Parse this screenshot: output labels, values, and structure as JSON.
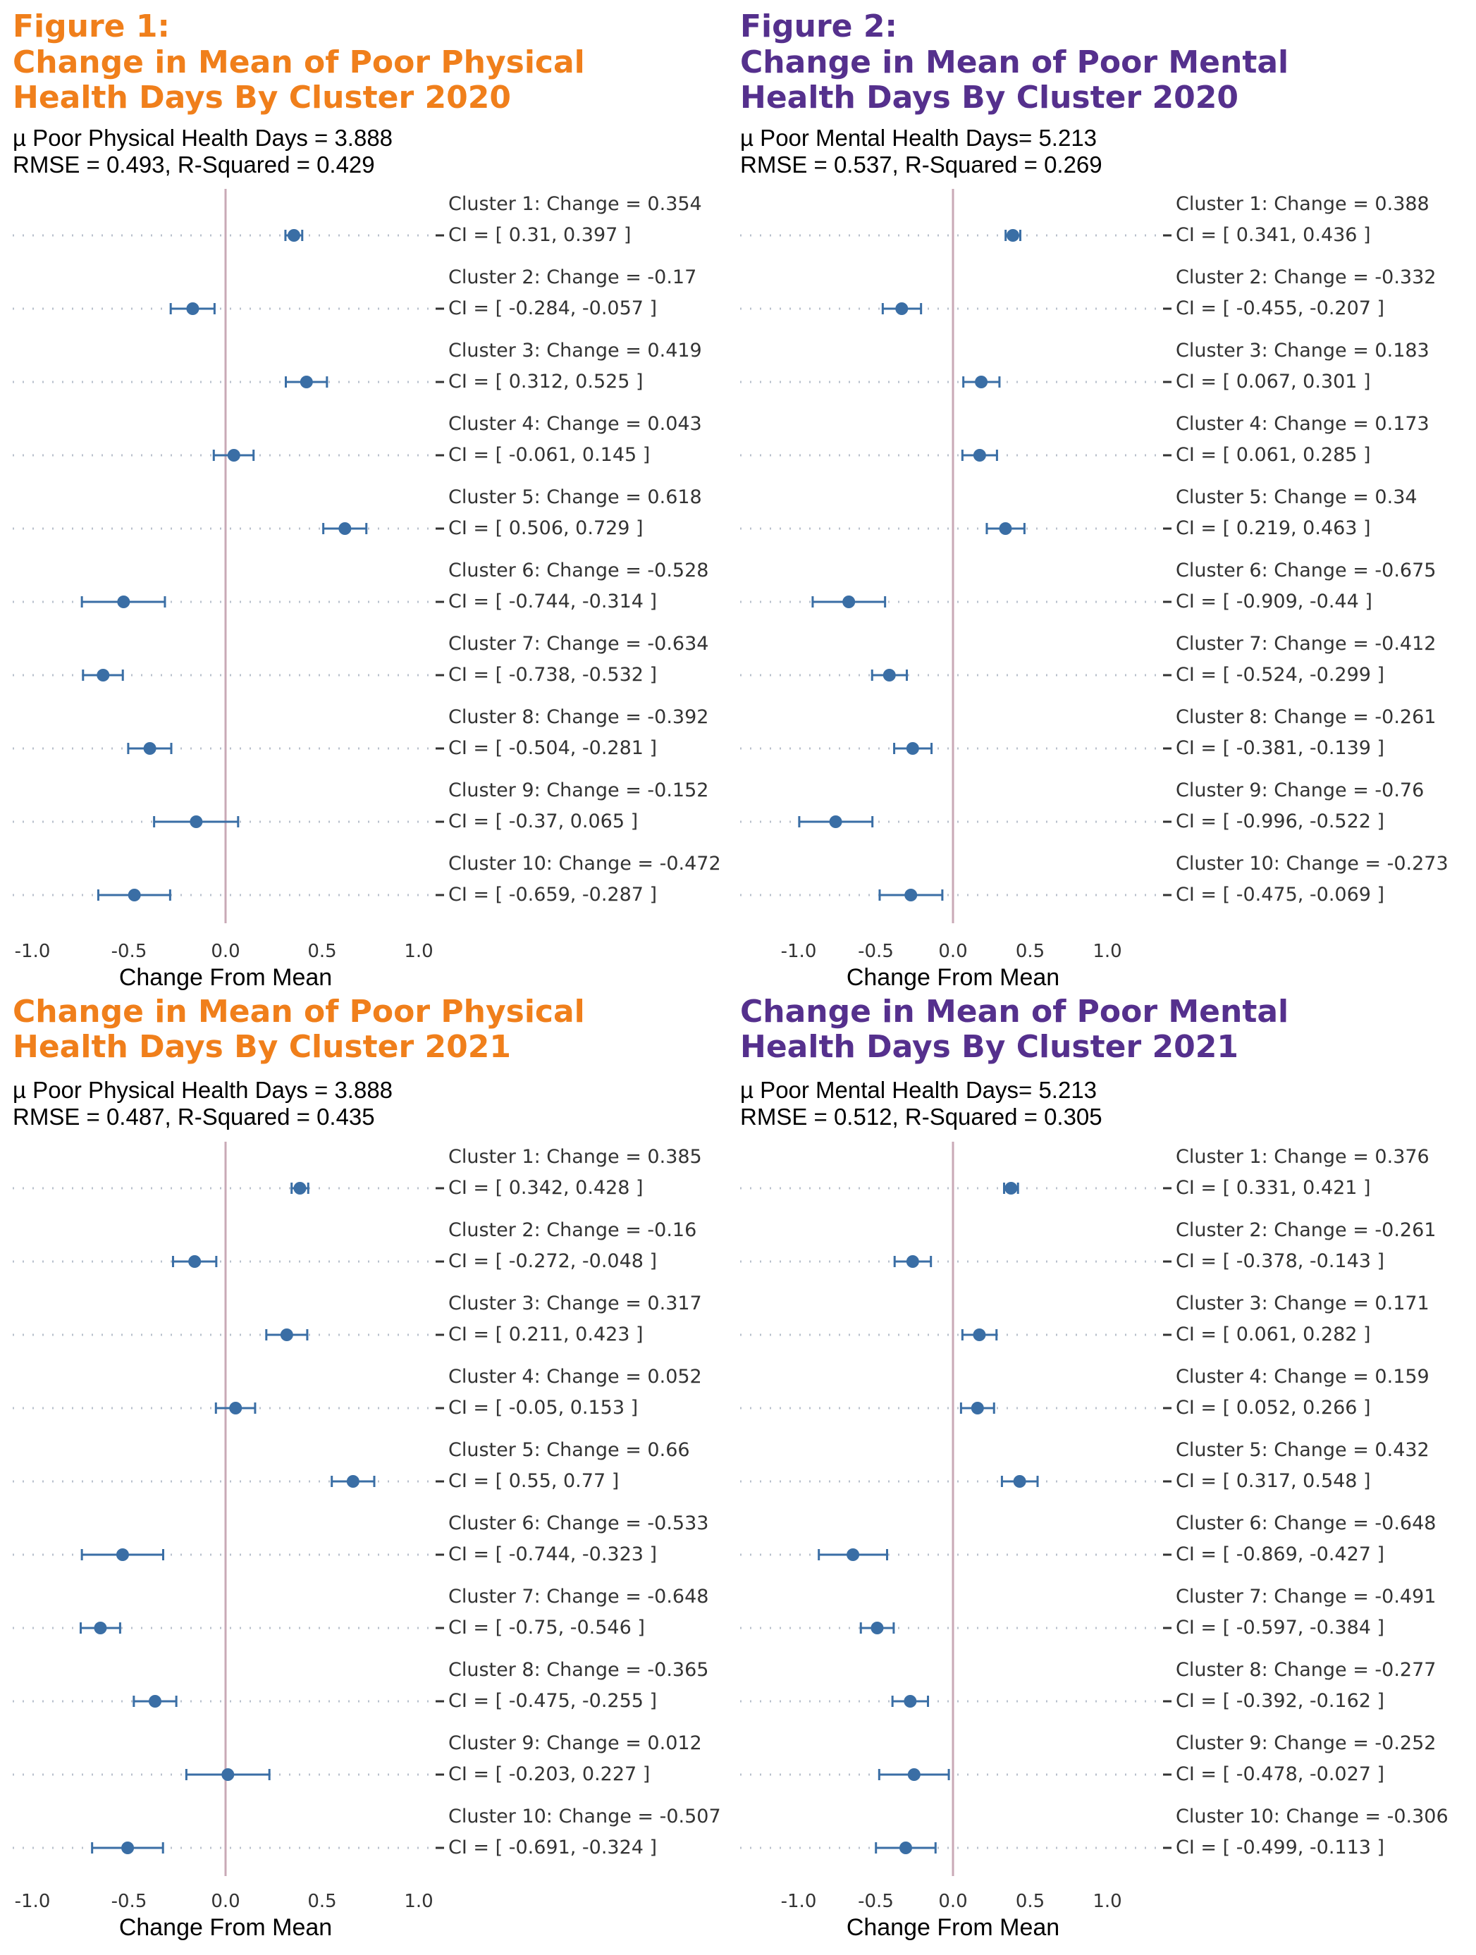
{
  "chart_data": [
    {
      "type": "forest",
      "title": [
        "Figure 1:",
        "Change in Mean of Poor Physical",
        "Health Days By Cluster 2020"
      ],
      "title_color": "#F07F1B",
      "stats": [
        "µ Poor Physical Health Days = 3.888",
        "RMSE = 0.493, R-Squared = 0.429"
      ],
      "xlabel": "Change From Mean",
      "xlim": [
        -1.1,
        1.25
      ],
      "xticks": [
        "-1.0",
        "-0.5",
        "0.0",
        "0.5",
        "1.0"
      ],
      "point_color": "#3A6EA5",
      "clusters": [
        {
          "label": "Cluster 1: Change = 0.354",
          "ci_label": "CI = [ 0.31, 0.397 ]",
          "value": 0.354,
          "lo": 0.31,
          "hi": 0.397
        },
        {
          "label": "Cluster 2: Change = -0.17",
          "ci_label": "CI = [ -0.284, -0.057 ]",
          "value": -0.17,
          "lo": -0.284,
          "hi": -0.057
        },
        {
          "label": "Cluster 3: Change = 0.419",
          "ci_label": "CI = [ 0.312, 0.525 ]",
          "value": 0.419,
          "lo": 0.312,
          "hi": 0.525
        },
        {
          "label": "Cluster 4: Change = 0.043",
          "ci_label": "CI = [ -0.061, 0.145 ]",
          "value": 0.043,
          "lo": -0.061,
          "hi": 0.145
        },
        {
          "label": "Cluster 5: Change = 0.618",
          "ci_label": "CI = [ 0.506, 0.729 ]",
          "value": 0.618,
          "lo": 0.506,
          "hi": 0.729
        },
        {
          "label": "Cluster 6: Change = -0.528",
          "ci_label": "CI = [ -0.744, -0.314 ]",
          "value": -0.528,
          "lo": -0.744,
          "hi": -0.314
        },
        {
          "label": "Cluster 7: Change = -0.634",
          "ci_label": "CI = [ -0.738, -0.532 ]",
          "value": -0.634,
          "lo": -0.738,
          "hi": -0.532
        },
        {
          "label": "Cluster 8: Change = -0.392",
          "ci_label": "CI = [ -0.504, -0.281 ]",
          "value": -0.392,
          "lo": -0.504,
          "hi": -0.281
        },
        {
          "label": "Cluster 9: Change = -0.152",
          "ci_label": "CI = [ -0.37, 0.065 ]",
          "value": -0.152,
          "lo": -0.37,
          "hi": 0.065
        },
        {
          "label": "Cluster 10: Change = -0.472",
          "ci_label": "CI = [ -0.659, -0.287 ]",
          "value": -0.472,
          "lo": -0.659,
          "hi": -0.287
        }
      ]
    },
    {
      "type": "forest",
      "title": [
        "Figure 2:",
        "Change in Mean of Poor Mental",
        "Health Days By Cluster 2020"
      ],
      "title_color": "#55308D",
      "stats": [
        "µ Poor Mental Health Days= 5.213",
        "RMSE = 0.537, R-Squared = 0.269"
      ],
      "xlabel": "Change From Mean",
      "xlim": [
        -1.35,
        1.25
      ],
      "xticks": [
        "-1.0",
        "-0.5",
        "0.0",
        "0.5",
        "1.0"
      ],
      "point_color": "#3A6EA5",
      "clusters": [
        {
          "label": "Cluster 1: Change = 0.388",
          "ci_label": "CI = [ 0.341, 0.436 ]",
          "value": 0.388,
          "lo": 0.341,
          "hi": 0.436
        },
        {
          "label": "Cluster 2: Change = -0.332",
          "ci_label": "CI = [ -0.455, -0.207 ]",
          "value": -0.332,
          "lo": -0.455,
          "hi": -0.207
        },
        {
          "label": "Cluster 3: Change = 0.183",
          "ci_label": "CI = [ 0.067, 0.301 ]",
          "value": 0.183,
          "lo": 0.067,
          "hi": 0.301
        },
        {
          "label": "Cluster 4: Change = 0.173",
          "ci_label": "CI = [ 0.061, 0.285 ]",
          "value": 0.173,
          "lo": 0.061,
          "hi": 0.285
        },
        {
          "label": "Cluster 5: Change = 0.34",
          "ci_label": "CI = [ 0.219, 0.463 ]",
          "value": 0.34,
          "lo": 0.219,
          "hi": 0.463
        },
        {
          "label": "Cluster 6: Change = -0.675",
          "ci_label": "CI = [ -0.909, -0.44 ]",
          "value": -0.675,
          "lo": -0.909,
          "hi": -0.44
        },
        {
          "label": "Cluster 7: Change = -0.412",
          "ci_label": "CI = [ -0.524, -0.299 ]",
          "value": -0.412,
          "lo": -0.524,
          "hi": -0.299
        },
        {
          "label": "Cluster 8: Change = -0.261",
          "ci_label": "CI = [ -0.381, -0.139 ]",
          "value": -0.261,
          "lo": -0.381,
          "hi": -0.139
        },
        {
          "label": "Cluster 9: Change = -0.76",
          "ci_label": "CI = [ -0.996, -0.522 ]",
          "value": -0.76,
          "lo": -0.996,
          "hi": -0.522
        },
        {
          "label": "Cluster 10: Change = -0.273",
          "ci_label": "CI = [ -0.475, -0.069 ]",
          "value": -0.273,
          "lo": -0.475,
          "hi": -0.069
        }
      ]
    },
    {
      "type": "forest",
      "title": [
        "Change in Mean of Poor Physical",
        "Health Days By Cluster 2021"
      ],
      "title_color": "#F07F1B",
      "stats": [
        "µ Poor Physical Health Days = 3.888",
        "RMSE = 0.487, R-Squared = 0.435"
      ],
      "xlabel": "Change From Mean",
      "xlim": [
        -1.1,
        1.25
      ],
      "xticks": [
        "-1.0",
        "-0.5",
        "0.0",
        "0.5",
        "1.0"
      ],
      "point_color": "#3A6EA5",
      "clusters": [
        {
          "label": "Cluster 1: Change = 0.385",
          "ci_label": "CI = [ 0.342, 0.428 ]",
          "value": 0.385,
          "lo": 0.342,
          "hi": 0.428
        },
        {
          "label": "Cluster 2: Change = -0.16",
          "ci_label": "CI = [ -0.272, -0.048 ]",
          "value": -0.16,
          "lo": -0.272,
          "hi": -0.048
        },
        {
          "label": "Cluster 3: Change = 0.317",
          "ci_label": "CI = [ 0.211, 0.423 ]",
          "value": 0.317,
          "lo": 0.211,
          "hi": 0.423
        },
        {
          "label": "Cluster 4: Change = 0.052",
          "ci_label": "CI = [ -0.05, 0.153 ]",
          "value": 0.052,
          "lo": -0.05,
          "hi": 0.153
        },
        {
          "label": "Cluster 5: Change = 0.66",
          "ci_label": "CI = [ 0.55, 0.77 ]",
          "value": 0.66,
          "lo": 0.55,
          "hi": 0.77
        },
        {
          "label": "Cluster 6: Change = -0.533",
          "ci_label": "CI = [ -0.744, -0.323 ]",
          "value": -0.533,
          "lo": -0.744,
          "hi": -0.323
        },
        {
          "label": "Cluster 7: Change = -0.648",
          "ci_label": "CI = [ -0.75, -0.546 ]",
          "value": -0.648,
          "lo": -0.75,
          "hi": -0.546
        },
        {
          "label": "Cluster 8: Change = -0.365",
          "ci_label": "CI = [ -0.475, -0.255 ]",
          "value": -0.365,
          "lo": -0.475,
          "hi": -0.255
        },
        {
          "label": "Cluster 9: Change = 0.012",
          "ci_label": "CI = [ -0.203, 0.227 ]",
          "value": 0.012,
          "lo": -0.203,
          "hi": 0.227
        },
        {
          "label": "Cluster 10: Change = -0.507",
          "ci_label": "CI = [ -0.691, -0.324 ]",
          "value": -0.507,
          "lo": -0.691,
          "hi": -0.324
        }
      ]
    },
    {
      "type": "forest",
      "title": [
        "Change in Mean of Poor Mental",
        "Health Days By Cluster 2021"
      ],
      "title_color": "#55308D",
      "stats": [
        "µ Poor Mental Health Days= 5.213",
        "RMSE = 0.512, R-Squared = 0.305"
      ],
      "xlabel": "Change From Mean",
      "xlim": [
        -1.35,
        1.25
      ],
      "xticks": [
        "-1.0",
        "-0.5",
        "0.0",
        "0.5",
        "1.0"
      ],
      "point_color": "#3A6EA5",
      "clusters": [
        {
          "label": "Cluster 1: Change = 0.376",
          "ci_label": "CI = [ 0.331, 0.421 ]",
          "value": 0.376,
          "lo": 0.331,
          "hi": 0.421
        },
        {
          "label": "Cluster 2: Change = -0.261",
          "ci_label": "CI = [ -0.378, -0.143 ]",
          "value": -0.261,
          "lo": -0.378,
          "hi": -0.143
        },
        {
          "label": "Cluster 3: Change = 0.171",
          "ci_label": "CI = [ 0.061, 0.282 ]",
          "value": 0.171,
          "lo": 0.061,
          "hi": 0.282
        },
        {
          "label": "Cluster 4: Change = 0.159",
          "ci_label": "CI = [ 0.052, 0.266 ]",
          "value": 0.159,
          "lo": 0.052,
          "hi": 0.266
        },
        {
          "label": "Cluster 5: Change = 0.432",
          "ci_label": "CI = [ 0.317, 0.548 ]",
          "value": 0.432,
          "lo": 0.317,
          "hi": 0.548
        },
        {
          "label": "Cluster 6: Change = -0.648",
          "ci_label": "CI = [ -0.869, -0.427 ]",
          "value": -0.648,
          "lo": -0.869,
          "hi": -0.427
        },
        {
          "label": "Cluster 7: Change = -0.491",
          "ci_label": "CI = [ -0.597, -0.384 ]",
          "value": -0.491,
          "lo": -0.597,
          "hi": -0.384
        },
        {
          "label": "Cluster 8: Change = -0.277",
          "ci_label": "CI = [ -0.392, -0.162 ]",
          "value": -0.277,
          "lo": -0.392,
          "hi": -0.162
        },
        {
          "label": "Cluster 9: Change = -0.252",
          "ci_label": "CI = [ -0.478, -0.027 ]",
          "value": -0.252,
          "lo": -0.478,
          "hi": -0.027
        },
        {
          "label": "Cluster 10: Change = -0.306",
          "ci_label": "CI = [ -0.499, -0.113 ]",
          "value": -0.306,
          "lo": -0.499,
          "hi": -0.113
        }
      ]
    }
  ]
}
